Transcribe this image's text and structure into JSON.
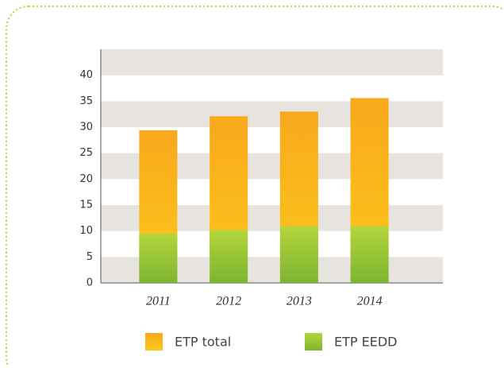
{
  "chart_data": {
    "type": "bar",
    "overlay": true,
    "categories": [
      "2011",
      "2012",
      "2013",
      "2014"
    ],
    "series": [
      {
        "name": "ETP total",
        "color": "#f9ad1c",
        "values": [
          29.4,
          32.1,
          33.0,
          35.6
        ]
      },
      {
        "name": "ETP EEDD",
        "color": "#97c437",
        "values": [
          9.5,
          10.2,
          10.9,
          10.9
        ]
      }
    ],
    "ylim": [
      0,
      45
    ],
    "yticks": [
      0,
      5,
      10,
      15,
      20,
      25,
      30,
      35,
      40
    ],
    "grid": "bands"
  }
}
